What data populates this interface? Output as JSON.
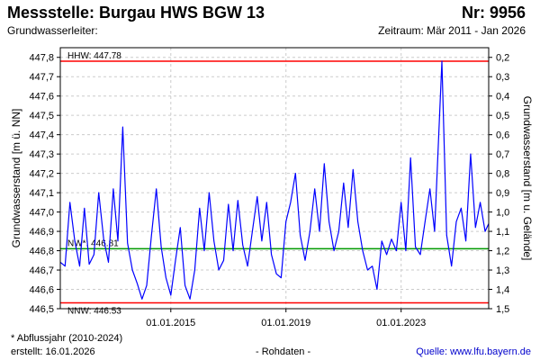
{
  "header": {
    "title": "Messstelle: Burgau HWS BGW 13",
    "number": "Nr: 9956",
    "aquifer_label": "Grundwasserleiter:",
    "period": "Zeitraum: Mär 2011 - Jan 2026"
  },
  "footer": {
    "note": "* Abflussjahr (2010-2024)",
    "created": "erstellt:  16.01.2026",
    "raw": "- Rohdaten -",
    "source": "Quelle: www.lfu.bayern.de"
  },
  "colors": {
    "series": "#0000ff",
    "hhw": "#ff0000",
    "nnw": "#ff0000",
    "nw": "#009900",
    "grid": "#cccccc"
  },
  "chart_data": {
    "type": "line",
    "ylabel": "Grundwasserstand [m ü. NN]",
    "y2label": "Grundwasserstand [m u. Gelände]",
    "ylim": [
      446.5,
      447.85
    ],
    "y2lim": [
      1.5,
      0.2
    ],
    "ylim_desc": "linear, right axis inverted",
    "yticks": [
      "446,5",
      "446,6",
      "446,7",
      "446,8",
      "446,9",
      "447,0",
      "447,1",
      "447,2",
      "447,3",
      "447,4",
      "447,5",
      "447,6",
      "447,7",
      "447,8"
    ],
    "y2ticks": [
      "1,5",
      "1,4",
      "1,3",
      "1,2",
      "1,1",
      "1,0",
      "0,9",
      "0,8",
      "0,7",
      "0,6",
      "0,5",
      "0,4",
      "0,3",
      "0,2"
    ],
    "xlim": [
      "2011-03-01",
      "2026-01-16"
    ],
    "xticks": [
      {
        "date": "2015-01-01",
        "label": "01.01.2015"
      },
      {
        "date": "2019-01-01",
        "label": "01.01.2019"
      },
      {
        "date": "2023-01-01",
        "label": "01.01.2023"
      }
    ],
    "grid": true,
    "reference_lines": [
      {
        "key": "hhw",
        "label": "HHW: 447.78",
        "value": 447.78
      },
      {
        "key": "nw",
        "label": "NW*: 446.81",
        "value": 446.81
      },
      {
        "key": "nnw",
        "label": "NNW: 446.53",
        "value": 446.53
      }
    ],
    "series": [
      {
        "points": [
          [
            "2011-03-01",
            446.74
          ],
          [
            "2011-05-01",
            446.72
          ],
          [
            "2011-07-01",
            447.05
          ],
          [
            "2011-09-01",
            446.85
          ],
          [
            "2011-11-01",
            446.72
          ],
          [
            "2012-01-01",
            447.02
          ],
          [
            "2012-03-01",
            446.73
          ],
          [
            "2012-05-01",
            446.78
          ],
          [
            "2012-07-01",
            447.1
          ],
          [
            "2012-09-01",
            446.86
          ],
          [
            "2012-11-01",
            446.74
          ],
          [
            "2013-01-01",
            447.12
          ],
          [
            "2013-03-01",
            446.85
          ],
          [
            "2013-05-01",
            447.44
          ],
          [
            "2013-07-01",
            446.84
          ],
          [
            "2013-09-01",
            446.7
          ],
          [
            "2013-11-01",
            446.63
          ],
          [
            "2014-01-01",
            446.55
          ],
          [
            "2014-03-01",
            446.62
          ],
          [
            "2014-05-01",
            446.88
          ],
          [
            "2014-07-01",
            447.12
          ],
          [
            "2014-09-01",
            446.82
          ],
          [
            "2014-11-01",
            446.66
          ],
          [
            "2015-01-01",
            446.57
          ],
          [
            "2015-03-01",
            446.75
          ],
          [
            "2015-05-01",
            446.92
          ],
          [
            "2015-07-01",
            446.62
          ],
          [
            "2015-09-01",
            446.55
          ],
          [
            "2015-11-01",
            446.7
          ],
          [
            "2016-01-01",
            447.02
          ],
          [
            "2016-03-01",
            446.8
          ],
          [
            "2016-05-01",
            447.1
          ],
          [
            "2016-07-01",
            446.85
          ],
          [
            "2016-09-01",
            446.7
          ],
          [
            "2016-11-01",
            446.75
          ],
          [
            "2017-01-01",
            447.04
          ],
          [
            "2017-03-01",
            446.8
          ],
          [
            "2017-05-01",
            447.06
          ],
          [
            "2017-07-01",
            446.83
          ],
          [
            "2017-09-01",
            446.72
          ],
          [
            "2017-11-01",
            446.9
          ],
          [
            "2018-01-01",
            447.08
          ],
          [
            "2018-03-01",
            446.85
          ],
          [
            "2018-05-01",
            447.05
          ],
          [
            "2018-07-01",
            446.78
          ],
          [
            "2018-09-01",
            446.68
          ],
          [
            "2018-11-01",
            446.66
          ],
          [
            "2019-01-01",
            446.95
          ],
          [
            "2019-03-01",
            447.05
          ],
          [
            "2019-05-01",
            447.2
          ],
          [
            "2019-07-01",
            446.88
          ],
          [
            "2019-09-01",
            446.75
          ],
          [
            "2019-11-01",
            446.9
          ],
          [
            "2020-01-01",
            447.12
          ],
          [
            "2020-03-01",
            446.9
          ],
          [
            "2020-05-01",
            447.25
          ],
          [
            "2020-07-01",
            446.95
          ],
          [
            "2020-09-01",
            446.8
          ],
          [
            "2020-11-01",
            446.9
          ],
          [
            "2021-01-01",
            447.15
          ],
          [
            "2021-03-01",
            446.92
          ],
          [
            "2021-05-01",
            447.22
          ],
          [
            "2021-07-01",
            446.95
          ],
          [
            "2021-09-01",
            446.8
          ],
          [
            "2021-11-01",
            446.7
          ],
          [
            "2022-01-01",
            446.72
          ],
          [
            "2022-03-01",
            446.6
          ],
          [
            "2022-05-01",
            446.85
          ],
          [
            "2022-07-01",
            446.78
          ],
          [
            "2022-09-01",
            446.86
          ],
          [
            "2022-11-01",
            446.8
          ],
          [
            "2023-01-01",
            447.05
          ],
          [
            "2023-03-01",
            446.8
          ],
          [
            "2023-05-01",
            447.28
          ],
          [
            "2023-07-01",
            446.82
          ],
          [
            "2023-09-01",
            446.78
          ],
          [
            "2023-11-01",
            446.95
          ],
          [
            "2024-01-01",
            447.12
          ],
          [
            "2024-03-01",
            446.9
          ],
          [
            "2024-06-01",
            447.78
          ],
          [
            "2024-08-01",
            446.88
          ],
          [
            "2024-10-01",
            446.72
          ],
          [
            "2024-12-01",
            446.95
          ],
          [
            "2025-02-01",
            447.02
          ],
          [
            "2025-04-01",
            446.85
          ],
          [
            "2025-06-01",
            447.3
          ],
          [
            "2025-08-01",
            446.92
          ],
          [
            "2025-10-01",
            447.05
          ],
          [
            "2025-12-01",
            446.9
          ],
          [
            "2026-01-16",
            446.94
          ]
        ]
      }
    ]
  }
}
